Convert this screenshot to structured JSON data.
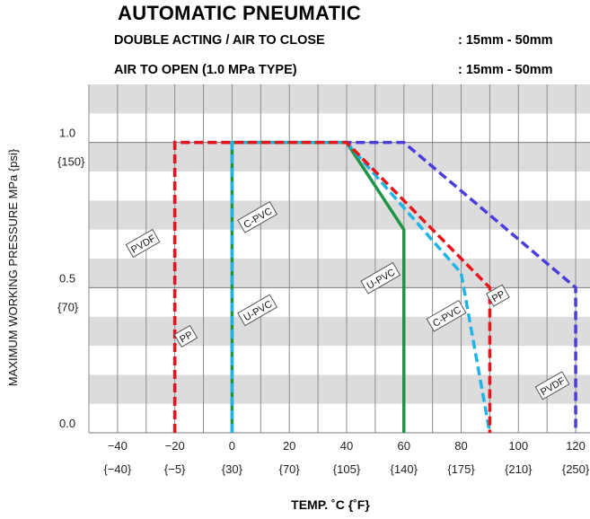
{
  "header": {
    "title": "AUTOMATIC  PNEUMATIC",
    "line1_label": "DOUBLE ACTING / AIR TO CLOSE",
    "line1_value": ":  15mm - 50mm",
    "line2_label": "AIR TO OPEN (1.0 MPa TYPE)",
    "line2_value": ":  15mm - 50mm"
  },
  "chart_data": {
    "type": "line",
    "xlabel": "TEMP. ˚C {˚F}",
    "ylabel": "MAXIMUM WORKING PRESSURE   MPa {psi}",
    "xlim": [
      -50,
      125
    ],
    "ylim": [
      0,
      1.2
    ],
    "x_ticks": [
      {
        "c": "−40",
        "f": "{−40}",
        "v": -40
      },
      {
        "c": "−20",
        "f": "{−5}",
        "v": -20
      },
      {
        "c": "0",
        "f": "{30}",
        "v": 0
      },
      {
        "c": "20",
        "f": "{70}",
        "v": 20
      },
      {
        "c": "40",
        "f": "{105}",
        "v": 40
      },
      {
        "c": "60",
        "f": "{140}",
        "v": 60
      },
      {
        "c": "80",
        "f": "{175}",
        "v": 80
      },
      {
        "c": "100",
        "f": "{210}",
        "v": 100
      },
      {
        "c": "120",
        "f": "{250}",
        "v": 120
      }
    ],
    "y_ticks": [
      {
        "label": "0.0",
        "sub": "",
        "v": 0.0
      },
      {
        "label": "0.5",
        "sub": "{70}",
        "v": 0.5
      },
      {
        "label": "1.0",
        "sub": "{150}",
        "v": 1.0
      }
    ],
    "grid": true,
    "series": [
      {
        "name": "PVDF",
        "color": "#4a3ddb",
        "style": "dashed",
        "points": [
          [
            -20,
            0
          ],
          [
            -20,
            1.0
          ],
          [
            60,
            1.0
          ],
          [
            120,
            0.5
          ],
          [
            120,
            0
          ]
        ]
      },
      {
        "name": "U-PVC",
        "color": "#1f9446",
        "style": "solid",
        "points": [
          [
            0,
            0
          ],
          [
            0,
            1.0
          ],
          [
            40,
            1.0
          ],
          [
            60,
            0.7
          ],
          [
            60,
            0
          ]
        ]
      },
      {
        "name": "C-PVC",
        "color": "#1fb3e6",
        "style": "dashed",
        "points": [
          [
            0,
            0
          ],
          [
            0,
            1.0
          ],
          [
            40,
            1.0
          ],
          [
            80,
            0.55
          ],
          [
            90,
            0
          ]
        ]
      },
      {
        "name": "PP",
        "color": "#e8141b",
        "style": "dashed",
        "points": [
          [
            -20,
            0
          ],
          [
            -20,
            1.0
          ],
          [
            40,
            1.0
          ],
          [
            90,
            0.5
          ],
          [
            90,
            0
          ]
        ]
      }
    ],
    "labels": [
      {
        "text": "PVDF",
        "x": -31,
        "y": 0.65,
        "rot": -30
      },
      {
        "text": "PP",
        "x": -16,
        "y": 0.33,
        "rot": -30
      },
      {
        "text": "C-PVC",
        "x": 9,
        "y": 0.74,
        "rot": -30
      },
      {
        "text": "U-PVC",
        "x": 9,
        "y": 0.42,
        "rot": -30
      },
      {
        "text": "U-PVC",
        "x": 52,
        "y": 0.53,
        "rot": -30
      },
      {
        "text": "C-PVC",
        "x": 75,
        "y": 0.4,
        "rot": -30
      },
      {
        "text": "PP",
        "x": 93,
        "y": 0.47,
        "rot": -30
      },
      {
        "text": "PVDF",
        "x": 112,
        "y": 0.16,
        "rot": -30
      }
    ]
  }
}
